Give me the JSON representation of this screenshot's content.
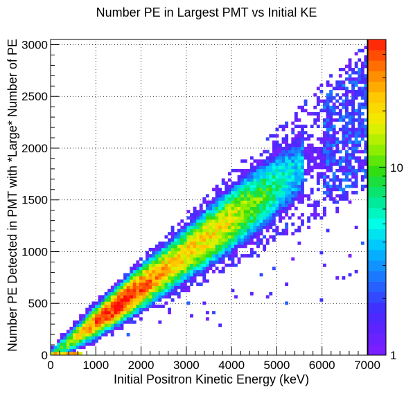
{
  "chart_data": {
    "type": "heatmap",
    "title": "Number PE in Largest PMT vs Initial KE",
    "xlabel": "Initial Positron Kinetic Energy (keV)",
    "ylabel": "Number PE Detected in PMT with *Large* Number of PE",
    "xlim": [
      0,
      7000
    ],
    "ylim": [
      0,
      3050
    ],
    "x_ticks": [
      "0",
      "1000",
      "2000",
      "3000",
      "4000",
      "5000",
      "6000",
      "7000"
    ],
    "y_ticks": [
      "0",
      "500",
      "1000",
      "1500",
      "2000",
      "2500",
      "3000"
    ],
    "grid": true,
    "colorbar": {
      "scale": "log",
      "range": [
        1,
        48
      ],
      "ticks": [
        "1",
        "10"
      ]
    },
    "trend": {
      "description_points": [
        [
          0,
          0
        ],
        [
          1000,
          330
        ],
        [
          2000,
          660
        ],
        [
          3000,
          980
        ],
        [
          4000,
          1300
        ],
        [
          5000,
          1600
        ],
        [
          6000,
          1930
        ],
        [
          6700,
          2200
        ]
      ],
      "peak_region_x": [
        800,
        2600
      ]
    }
  }
}
